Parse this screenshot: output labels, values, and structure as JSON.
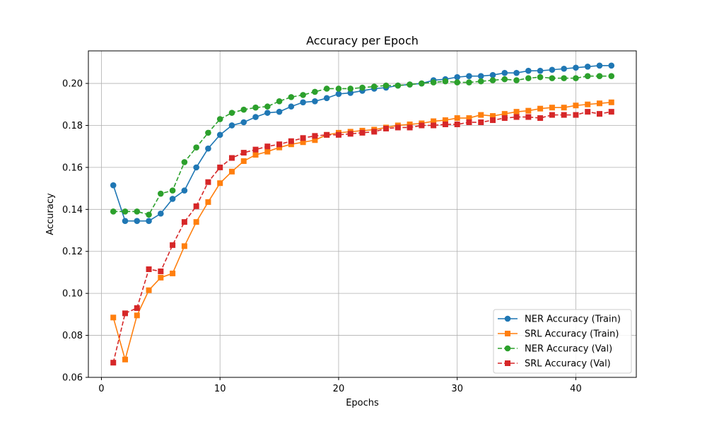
{
  "chart_data": {
    "type": "line",
    "title": "Accuracy per Epoch",
    "xlabel": "Epochs",
    "ylabel": "Accuracy",
    "xlim": [
      -1.1,
      45.1
    ],
    "ylim": [
      0.06,
      0.2155
    ],
    "xticks": [
      0,
      10,
      20,
      30,
      40
    ],
    "yticks": [
      0.06,
      0.08,
      0.1,
      0.12,
      0.14,
      0.16,
      0.18,
      0.2
    ],
    "ytick_labels": [
      "0.06",
      "0.08",
      "0.10",
      "0.12",
      "0.14",
      "0.16",
      "0.18",
      "0.20"
    ],
    "grid": true,
    "legend_position": "lower-right",
    "x": [
      1,
      2,
      3,
      4,
      5,
      6,
      7,
      8,
      9,
      10,
      11,
      12,
      13,
      14,
      15,
      16,
      17,
      18,
      19,
      20,
      21,
      22,
      23,
      24,
      25,
      26,
      27,
      28,
      29,
      30,
      31,
      32,
      33,
      34,
      35,
      36,
      37,
      38,
      39,
      40,
      41,
      42,
      43
    ],
    "series": [
      {
        "name": "NER Accuracy (Train)",
        "color": "#1f77b4",
        "marker": "circle",
        "linestyle": "solid",
        "values": [
          0.1515,
          0.1345,
          0.1345,
          0.1345,
          0.138,
          0.145,
          0.149,
          0.16,
          0.169,
          0.1755,
          0.18,
          0.1815,
          0.184,
          0.186,
          0.1865,
          0.189,
          0.191,
          0.1915,
          0.193,
          0.195,
          0.1955,
          0.1965,
          0.1975,
          0.198,
          0.199,
          0.1995,
          0.2,
          0.2015,
          0.202,
          0.203,
          0.2035,
          0.2035,
          0.204,
          0.205,
          0.205,
          0.206,
          0.206,
          0.2065,
          0.207,
          0.2075,
          0.208,
          0.2085,
          0.2085
        ]
      },
      {
        "name": "SRL Accuracy (Train)",
        "color": "#ff7f0e",
        "marker": "square",
        "linestyle": "solid",
        "values": [
          0.0885,
          0.0685,
          0.0895,
          0.1015,
          0.1075,
          0.1095,
          0.1225,
          0.134,
          0.1435,
          0.1525,
          0.158,
          0.163,
          0.166,
          0.1675,
          0.1695,
          0.171,
          0.172,
          0.173,
          0.1755,
          0.1765,
          0.177,
          0.1775,
          0.178,
          0.179,
          0.18,
          0.1805,
          0.181,
          0.182,
          0.1825,
          0.1835,
          0.1835,
          0.185,
          0.1845,
          0.1855,
          0.1865,
          0.187,
          0.188,
          0.1885,
          0.1885,
          0.1895,
          0.19,
          0.1905,
          0.191
        ]
      },
      {
        "name": "NER Accuracy (Val)",
        "color": "#2ca02c",
        "marker": "circle",
        "linestyle": "dashed",
        "values": [
          0.139,
          0.139,
          0.139,
          0.1375,
          0.1475,
          0.149,
          0.1625,
          0.1695,
          0.1765,
          0.183,
          0.186,
          0.1875,
          0.1885,
          0.189,
          0.1915,
          0.1935,
          0.1945,
          0.196,
          0.1975,
          0.1975,
          0.1975,
          0.198,
          0.1985,
          0.199,
          0.199,
          0.1995,
          0.2,
          0.2005,
          0.201,
          0.2005,
          0.2005,
          0.201,
          0.2015,
          0.202,
          0.2015,
          0.2025,
          0.203,
          0.2025,
          0.2025,
          0.2025,
          0.2035,
          0.2035,
          0.2035
        ]
      },
      {
        "name": "SRL Accuracy (Val)",
        "color": "#d62728",
        "marker": "square",
        "linestyle": "dashed",
        "values": [
          0.067,
          0.0905,
          0.093,
          0.1115,
          0.1105,
          0.123,
          0.134,
          0.1415,
          0.153,
          0.16,
          0.1645,
          0.167,
          0.1685,
          0.17,
          0.171,
          0.1725,
          0.174,
          0.175,
          0.1755,
          0.1755,
          0.176,
          0.1765,
          0.177,
          0.1785,
          0.179,
          0.179,
          0.18,
          0.18,
          0.1805,
          0.1805,
          0.1815,
          0.1815,
          0.1825,
          0.1835,
          0.184,
          0.184,
          0.1835,
          0.185,
          0.185,
          0.185,
          0.1865,
          0.1855,
          0.1865
        ]
      }
    ]
  }
}
